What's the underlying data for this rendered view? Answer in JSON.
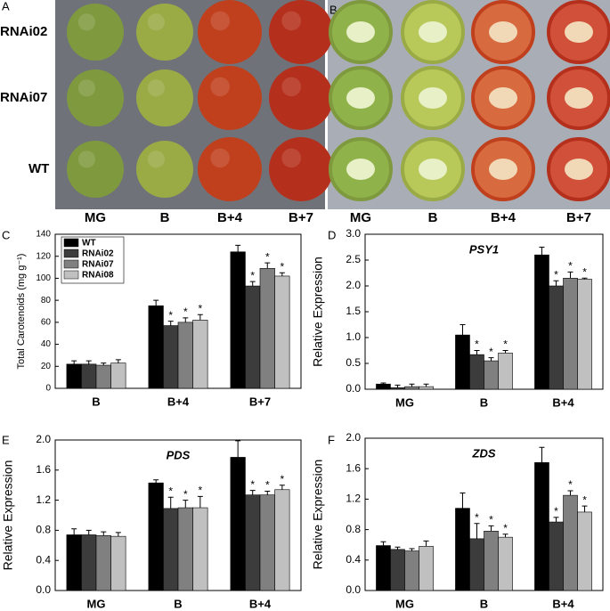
{
  "photos": {
    "A": {
      "letter": "A",
      "rows": [
        "RNAi02",
        "RNAi07",
        "WT"
      ],
      "columns": [
        "MG",
        "B",
        "B+4",
        "B+7"
      ]
    },
    "B": {
      "letter": "B",
      "columns": [
        "MG",
        "B",
        "B+4",
        "B+7"
      ]
    }
  },
  "chart_data": [
    {
      "type": "bar",
      "panel": "C",
      "ylabel": "Total Carotenoids (mg g⁻¹)",
      "legend": "upper-left",
      "categories": [
        "B",
        "B+4",
        "B+7"
      ],
      "ylim": [
        0,
        140
      ],
      "yticks": [
        0,
        20,
        40,
        60,
        80,
        100,
        120,
        140
      ],
      "series": [
        {
          "name": "WT",
          "color": "#000000",
          "values": [
            22,
            75,
            124
          ],
          "errors": [
            3,
            5,
            6
          ],
          "significance": [
            null,
            null,
            null
          ]
        },
        {
          "name": "RNAi02",
          "color": "#3c3c3c",
          "values": [
            22,
            57,
            93
          ],
          "errors": [
            3,
            4,
            4
          ],
          "significance": [
            null,
            "*",
            "*"
          ]
        },
        {
          "name": "RNAi07",
          "color": "#808080",
          "values": [
            21,
            60,
            109
          ],
          "errors": [
            2,
            4,
            5
          ],
          "significance": [
            null,
            "*",
            "*"
          ]
        },
        {
          "name": "RNAi08",
          "color": "#c0c0c0",
          "values": [
            23,
            62,
            102
          ],
          "errors": [
            3,
            5,
            3
          ],
          "significance": [
            null,
            "*",
            "*"
          ]
        }
      ]
    },
    {
      "type": "bar",
      "panel": "D",
      "title": "PSY1",
      "ylabel": "Relative Expression",
      "categories": [
        "MG",
        "B",
        "B+4"
      ],
      "ylim": [
        0,
        3
      ],
      "yticks": [
        {
          "value": 0,
          "label": "0.0"
        },
        0.5,
        {
          "value": 1,
          "label": "1.0"
        },
        1.5,
        {
          "value": 2,
          "label": "2.0"
        },
        2.5,
        {
          "value": 3,
          "label": "3.0"
        }
      ],
      "series": [
        {
          "color": "#000000",
          "values": [
            0.1,
            1.05,
            2.6
          ],
          "errors": [
            0.02,
            0.2,
            0.15
          ],
          "significance": [
            null,
            null,
            null
          ]
        },
        {
          "color": "#3c3c3c",
          "values": [
            0.03,
            0.67,
            2.0
          ],
          "errors": [
            0.05,
            0.08,
            0.1
          ],
          "significance": [
            null,
            "*",
            "*"
          ]
        },
        {
          "color": "#808080",
          "values": [
            0.05,
            0.55,
            2.15
          ],
          "errors": [
            0.05,
            0.06,
            0.12
          ],
          "significance": [
            null,
            "*",
            "*"
          ]
        },
        {
          "color": "#c0c0c0",
          "values": [
            0.05,
            0.7,
            2.13
          ],
          "errors": [
            0.05,
            0.05,
            0.02
          ],
          "significance": [
            null,
            "*",
            "*"
          ]
        }
      ]
    },
    {
      "type": "bar",
      "panel": "E",
      "title": "PDS",
      "ylabel": "Relative Expression",
      "categories": [
        "MG",
        "B",
        "B+4"
      ],
      "ylim": [
        0,
        2
      ],
      "yticks": [
        {
          "value": 0,
          "label": "0.0"
        },
        0.4,
        0.8,
        1.2,
        1.6,
        {
          "value": 2,
          "label": "2.0"
        }
      ],
      "series": [
        {
          "color": "#000000",
          "values": [
            0.74,
            1.43,
            1.77
          ],
          "errors": [
            0.08,
            0.04,
            0.22
          ],
          "significance": [
            null,
            null,
            null
          ]
        },
        {
          "color": "#3c3c3c",
          "values": [
            0.74,
            1.09,
            1.27
          ],
          "errors": [
            0.06,
            0.15,
            0.06
          ],
          "significance": [
            null,
            "*",
            "*"
          ]
        },
        {
          "color": "#808080",
          "values": [
            0.73,
            1.1,
            1.27
          ],
          "errors": [
            0.05,
            0.1,
            0.05
          ],
          "significance": [
            null,
            "*",
            "*"
          ]
        },
        {
          "color": "#c0c0c0",
          "values": [
            0.72,
            1.1,
            1.34
          ],
          "errors": [
            0.05,
            0.15,
            0.06
          ],
          "significance": [
            null,
            "*",
            "*"
          ]
        }
      ]
    },
    {
      "type": "bar",
      "panel": "F",
      "title": "ZDS",
      "ylabel": "Relative Expression",
      "categories": [
        "MG",
        "B",
        "B+4"
      ],
      "ylim": [
        0,
        2
      ],
      "yticks": [
        {
          "value": 0,
          "label": "0.0"
        },
        0.4,
        0.8,
        1.2,
        1.6,
        {
          "value": 2,
          "label": "2.0"
        }
      ],
      "series": [
        {
          "color": "#000000",
          "values": [
            0.59,
            1.08,
            1.68
          ],
          "errors": [
            0.05,
            0.2,
            0.2
          ],
          "significance": [
            null,
            null,
            null
          ]
        },
        {
          "color": "#3c3c3c",
          "values": [
            0.54,
            0.68,
            0.9
          ],
          "errors": [
            0.03,
            0.2,
            0.06
          ],
          "significance": [
            null,
            "*",
            "*"
          ]
        },
        {
          "color": "#808080",
          "values": [
            0.52,
            0.78,
            1.25
          ],
          "errors": [
            0.03,
            0.07,
            0.06
          ],
          "significance": [
            null,
            "*",
            "*"
          ]
        },
        {
          "color": "#c0c0c0",
          "values": [
            0.58,
            0.7,
            1.03
          ],
          "errors": [
            0.07,
            0.04,
            0.08
          ],
          "significance": [
            null,
            "*",
            "*"
          ]
        }
      ]
    }
  ]
}
